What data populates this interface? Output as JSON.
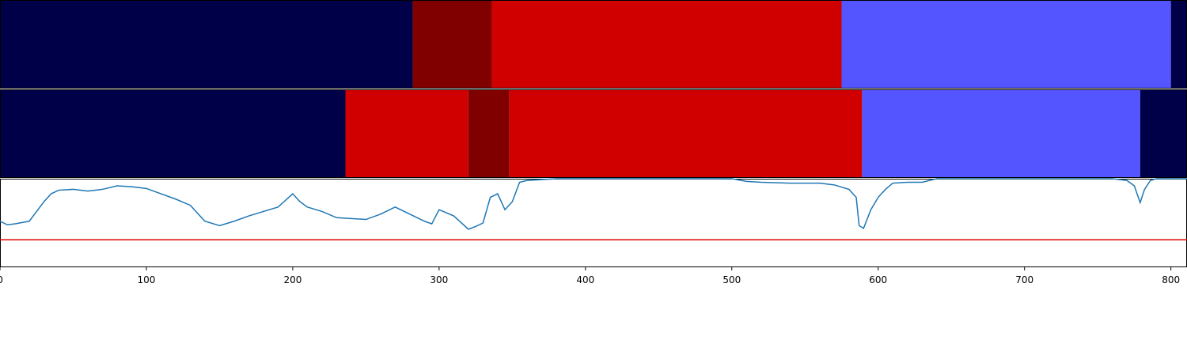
{
  "chart_data": {
    "type": "segments-line",
    "xlim": [
      0,
      811
    ],
    "xticks": [
      0,
      100,
      200,
      300,
      400,
      500,
      600,
      700,
      800
    ],
    "tracks": [
      {
        "segments": [
          {
            "start": 0,
            "end": 282,
            "color": "#000048"
          },
          {
            "start": 282,
            "end": 336,
            "color": "#800000"
          },
          {
            "start": 336,
            "end": 575,
            "color": "#d00000"
          },
          {
            "start": 575,
            "end": 800,
            "color": "#5555ff"
          },
          {
            "start": 800,
            "end": 811,
            "color": "#000048"
          }
        ]
      },
      {
        "segments": [
          {
            "start": 0,
            "end": 236,
            "color": "#000048"
          },
          {
            "start": 236,
            "end": 320,
            "color": "#d00000"
          },
          {
            "start": 320,
            "end": 348,
            "color": "#800000"
          },
          {
            "start": 348,
            "end": 589,
            "color": "#d00000"
          },
          {
            "start": 589,
            "end": 779,
            "color": "#5555ff"
          },
          {
            "start": 779,
            "end": 811,
            "color": "#000048"
          }
        ]
      }
    ],
    "ylim": [
      0,
      1
    ],
    "threshold": 0.31,
    "threshold_color": "#e00000",
    "series": [
      {
        "color": "#1f77b4",
        "x": [
          0,
          5,
          10,
          20,
          25,
          30,
          35,
          40,
          50,
          60,
          70,
          80,
          90,
          100,
          110,
          120,
          130,
          140,
          150,
          160,
          170,
          180,
          190,
          200,
          205,
          210,
          220,
          230,
          240,
          250,
          260,
          270,
          280,
          290,
          295,
          300,
          310,
          320,
          325,
          330,
          335,
          340,
          345,
          350,
          355,
          360,
          380,
          500,
          510,
          520,
          540,
          560,
          570,
          580,
          585,
          587,
          590,
          595,
          600,
          605,
          610,
          620,
          630,
          640,
          760,
          770,
          775,
          779,
          782,
          786,
          790,
          811
        ],
        "values": [
          0.52,
          0.48,
          0.49,
          0.52,
          0.63,
          0.74,
          0.83,
          0.87,
          0.88,
          0.86,
          0.88,
          0.92,
          0.91,
          0.89,
          0.83,
          0.77,
          0.7,
          0.52,
          0.47,
          0.52,
          0.58,
          0.63,
          0.68,
          0.83,
          0.74,
          0.68,
          0.63,
          0.56,
          0.55,
          0.54,
          0.6,
          0.68,
          0.6,
          0.52,
          0.49,
          0.65,
          0.58,
          0.43,
          0.46,
          0.5,
          0.79,
          0.83,
          0.65,
          0.74,
          0.96,
          0.98,
          1.0,
          1.0,
          0.97,
          0.96,
          0.95,
          0.95,
          0.93,
          0.88,
          0.79,
          0.47,
          0.44,
          0.65,
          0.79,
          0.88,
          0.95,
          0.96,
          0.96,
          1.0,
          1.0,
          0.98,
          0.92,
          0.73,
          0.88,
          0.98,
          1.0,
          1.0
        ]
      }
    ]
  }
}
